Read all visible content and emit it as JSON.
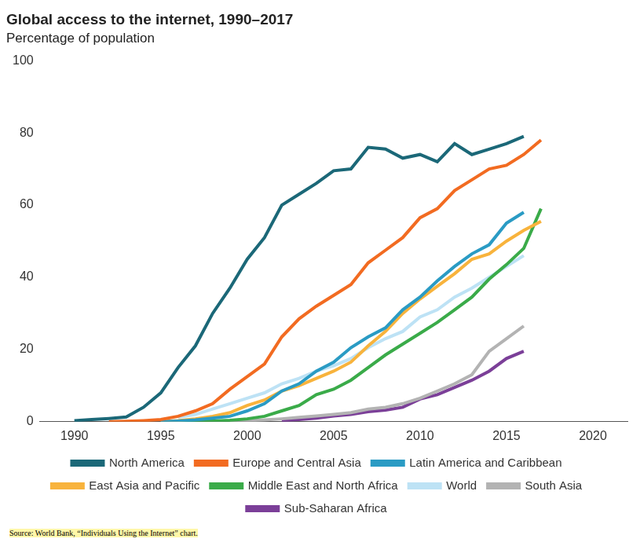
{
  "chart_data": {
    "type": "line",
    "title": "Global access to the internet, 1990–2017",
    "subtitle": "Percentage of population",
    "source": "Source: World Bank, “Individuals Using the Internet” chart.",
    "x": [
      1990,
      1991,
      1992,
      1993,
      1994,
      1995,
      1996,
      1997,
      1998,
      1999,
      2000,
      2001,
      2002,
      2003,
      2004,
      2005,
      2006,
      2007,
      2008,
      2009,
      2010,
      2011,
      2012,
      2013,
      2014,
      2015,
      2016,
      2017
    ],
    "xlim": [
      1988,
      2022
    ],
    "xticks": [
      1990,
      1995,
      2000,
      2005,
      2010,
      2015,
      2020
    ],
    "ylim": [
      0,
      100
    ],
    "yticks": [
      0,
      20,
      40,
      60,
      80,
      100
    ],
    "grid": false,
    "legend": "bottom",
    "series": [
      {
        "name": "North America",
        "color": "#1b6878",
        "values": [
          0.3,
          0.6,
          0.9,
          1.3,
          4,
          8,
          15,
          21,
          30,
          37,
          45,
          51,
          60,
          63,
          66,
          69.5,
          70,
          76,
          75.5,
          73,
          74,
          72,
          77,
          74,
          75.5,
          77,
          79,
          null
        ]
      },
      {
        "name": "Europe and Central Asia",
        "color": "#f26b21",
        "values": [
          null,
          null,
          0,
          0.1,
          0.3,
          0.6,
          1.5,
          3,
          5,
          9,
          12.5,
          16,
          23.5,
          28.5,
          32,
          35,
          38,
          44,
          47.5,
          51,
          56.5,
          59,
          64,
          67,
          70,
          71,
          74,
          78
        ]
      },
      {
        "name": "Latin America and Caribbean",
        "color": "#2a9bc4",
        "values": [
          null,
          null,
          null,
          null,
          null,
          0,
          0.2,
          0.5,
          1,
          1.5,
          3,
          5,
          8.5,
          10.5,
          14,
          16.5,
          20.5,
          23.5,
          26,
          31,
          34.5,
          39,
          43,
          46.5,
          49,
          55,
          58,
          null
        ]
      },
      {
        "name": "East Asia and Pacific",
        "color": "#f8b33c",
        "values": [
          null,
          null,
          null,
          null,
          null,
          0,
          0.3,
          0.8,
          1.5,
          2.5,
          4.5,
          6,
          8.5,
          10,
          12,
          14,
          16.5,
          21,
          25,
          30,
          34,
          37.5,
          41,
          45,
          46.5,
          50,
          53,
          55.5
        ]
      },
      {
        "name": "Middle East and North Africa",
        "color": "#3aab49",
        "values": [
          null,
          null,
          null,
          null,
          null,
          null,
          0,
          0.1,
          0.2,
          0.4,
          0.8,
          1.5,
          3,
          4.5,
          7.5,
          9,
          11.5,
          15,
          18.5,
          21.5,
          24.5,
          27.5,
          31,
          34.5,
          39.5,
          43.5,
          48,
          59
        ]
      },
      {
        "name": "World",
        "color": "#bde2f5",
        "values": [
          null,
          null,
          null,
          null,
          null,
          null,
          1.2,
          2,
          3.5,
          5,
          6.5,
          8,
          10.5,
          12,
          14,
          15.5,
          17.5,
          20.5,
          23,
          25,
          29,
          31,
          34.5,
          37,
          40,
          43,
          46,
          null
        ]
      },
      {
        "name": "South Asia",
        "color": "#b3b3b3",
        "values": [
          null,
          null,
          null,
          null,
          null,
          null,
          null,
          null,
          null,
          0,
          0.3,
          0.5,
          0.8,
          1.2,
          1.6,
          2,
          2.5,
          3.5,
          4,
          5,
          6.5,
          8.5,
          10.5,
          13,
          19.5,
          23,
          26.5,
          null
        ]
      },
      {
        "name": "Sub-Saharan Africa",
        "color": "#7b3f98",
        "values": [
          null,
          null,
          null,
          null,
          null,
          null,
          null,
          null,
          null,
          null,
          null,
          null,
          0.3,
          0.6,
          1,
          1.6,
          2,
          2.8,
          3.2,
          4,
          6.3,
          7.5,
          9.5,
          11.5,
          14,
          17.5,
          19.5,
          null
        ]
      }
    ]
  }
}
